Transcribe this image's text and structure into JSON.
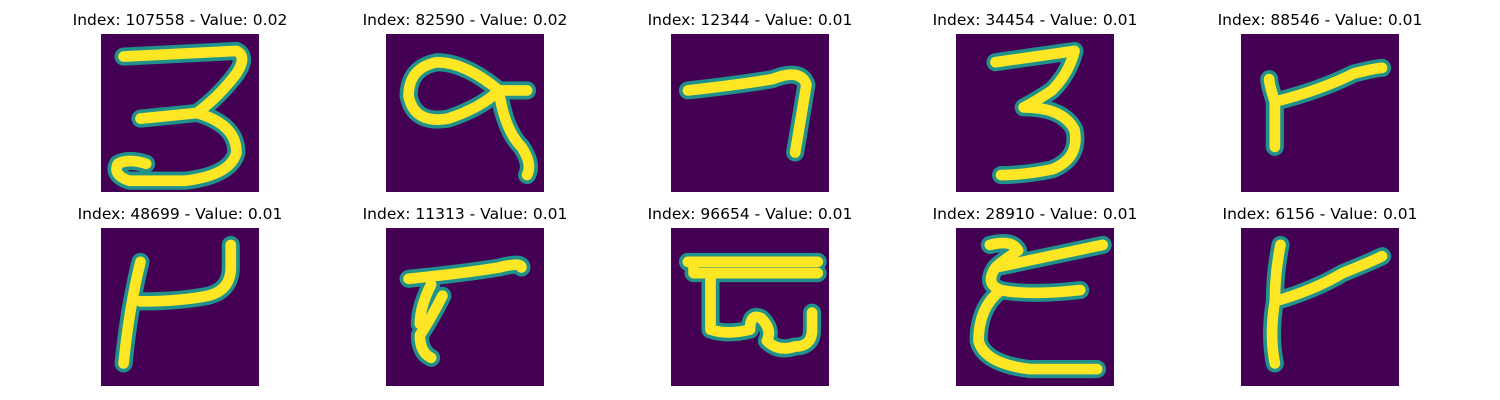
{
  "colors": {
    "background": "#440154",
    "stroke_edge": "#21918c",
    "stroke_core": "#fde725"
  },
  "panels": [
    {
      "title": "Index: 107558 - Value: 0.02",
      "glyph": "digit-3-like"
    },
    {
      "title": "Index: 82590 - Value: 0.02",
      "glyph": "loop-tailed"
    },
    {
      "title": "Index: 12344 - Value: 0.01",
      "glyph": "seven-like"
    },
    {
      "title": "Index: 34454 - Value: 0.01",
      "glyph": "digit-3-like"
    },
    {
      "title": "Index: 88546 - Value: 0.01",
      "glyph": "flag-like"
    },
    {
      "title": "Index: 48699 - Value: 0.01",
      "glyph": "bracket-hook"
    },
    {
      "title": "Index: 11313 - Value: 0.01",
      "glyph": "flag-like"
    },
    {
      "title": "Index: 96654 - Value: 0.01",
      "glyph": "bar-loop"
    },
    {
      "title": "Index: 28910 - Value: 0.01",
      "glyph": "epsilon-like"
    },
    {
      "title": "Index: 6156 - Value: 0.01",
      "glyph": "flag-like"
    }
  ]
}
